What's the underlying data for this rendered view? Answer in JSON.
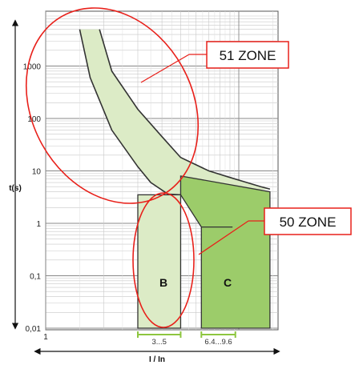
{
  "chart_data": {
    "type": "area",
    "title": "",
    "xlabel": "I / In",
    "ylabel": "t(s)",
    "x_scale": "log",
    "y_scale": "log",
    "xlim": [
      1,
      16
    ],
    "ylim": [
      0.01,
      5000
    ],
    "grid": true,
    "x_tick_labels": [
      "1"
    ],
    "y_tick_labels": [
      "0,01",
      "0,1",
      "1",
      "10",
      "100",
      "1000"
    ],
    "y_tick_values": [
      0.01,
      0.1,
      1,
      10,
      100,
      1000
    ],
    "series": [
      {
        "kind": "thermal-band",
        "color": "#dcebc6",
        "upper": {
          "x": [
            1.9,
            2.2,
            3.0,
            4.0,
            5.0,
            7.0,
            9.0,
            11.0,
            13.0,
            14.5
          ],
          "y": [
            5000,
            800,
            150,
            45,
            18,
            10,
            7.5,
            6.0,
            5.0,
            4.5
          ]
        },
        "lower": {
          "x": [
            1.5,
            1.7,
            2.2,
            3.0,
            3.5,
            4.3,
            5.0
          ],
          "y": [
            5000,
            600,
            60,
            12,
            6,
            3.6,
            3.5
          ]
        }
      },
      {
        "name": "B",
        "kind": "magnetic-band",
        "color": "#dcebc6",
        "x_range": [
          3,
          5
        ],
        "y_top": 3.5,
        "y_bottom": 0.01
      },
      {
        "name": "C",
        "kind": "magnetic-band",
        "color": "#9ccc6a",
        "x_range": [
          6.4,
          9.6
        ],
        "y_top_left": 8.5,
        "y_top_right": 0.85,
        "y_bottom": 0.01,
        "thermal_strip": {
          "x_range": [
            5.0,
            14.5
          ],
          "upper_y": [
            8.0,
            4.0
          ],
          "lower_y": [
            3.5,
            1.1
          ]
        }
      }
    ],
    "annotations": [
      {
        "text": "51 ZONE",
        "target": "thermal curve (upper-left ellipse)"
      },
      {
        "text": "50 ZONE",
        "target": "instantaneous B band (lower ellipse)"
      }
    ],
    "range_markers": [
      {
        "label": "3...5",
        "x_range": [
          3,
          5
        ]
      },
      {
        "label": "6.4...9.6",
        "x_range": [
          6.4,
          9.6
        ]
      }
    ],
    "colors": {
      "zone_outline": "#e8201a",
      "range_marker": "#8dc63f",
      "curve": "#333333"
    }
  }
}
